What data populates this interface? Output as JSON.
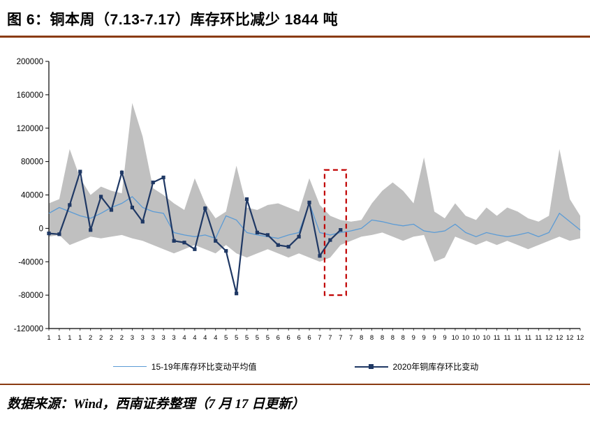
{
  "figure": {
    "source": "数据来源：Wind，西南证券整理（7 月 17 日更新）"
  },
  "colors": {
    "band": "#c0c0c0",
    "avg_line": "#5b9bd5",
    "line_2020": "#1f3864",
    "highlight": "#c00000",
    "rule": "#8a3b12",
    "axis": "#000000"
  },
  "chart_data": {
    "type": "line",
    "title": "图 6：铜本周（7.13-7.17）库存环比减少 1844 吨",
    "xlabel": "",
    "ylabel": "",
    "unit": "吨",
    "ylim": [
      -120000,
      200000
    ],
    "yticks": [
      200000,
      160000,
      120000,
      80000,
      40000,
      0,
      -40000,
      -80000,
      -120000
    ],
    "grid": false,
    "legend_position": "bottom",
    "x_labels": [
      "1",
      "1",
      "1",
      "1",
      "2",
      "2",
      "2",
      "2",
      "3",
      "3",
      "3",
      "3",
      "3",
      "4",
      "4",
      "4",
      "4",
      "5",
      "5",
      "5",
      "5",
      "5",
      "6",
      "6",
      "6",
      "6",
      "7",
      "7",
      "7",
      "7",
      "8",
      "8",
      "8",
      "8",
      "8",
      "9",
      "9",
      "9",
      "9",
      "10",
      "10",
      "10",
      "10",
      "11",
      "11",
      "11",
      "11",
      "11",
      "12",
      "12",
      "12",
      "12"
    ],
    "band": {
      "name": "15-19年库存环比变动区间",
      "upper": [
        30000,
        35000,
        95000,
        60000,
        40000,
        50000,
        45000,
        42000,
        150000,
        110000,
        48000,
        40000,
        30000,
        22000,
        60000,
        30000,
        12000,
        20000,
        75000,
        25000,
        22000,
        28000,
        30000,
        25000,
        20000,
        60000,
        28000,
        15000,
        10000,
        8000,
        10000,
        30000,
        45000,
        55000,
        45000,
        30000,
        85000,
        20000,
        12000,
        30000,
        15000,
        10000,
        25000,
        15000,
        25000,
        20000,
        12000,
        8000,
        15000,
        95000,
        35000,
        15000
      ],
      "lower": [
        -10000,
        -8000,
        -20000,
        -15000,
        -10000,
        -12000,
        -10000,
        -8000,
        -12000,
        -15000,
        -20000,
        -25000,
        -30000,
        -25000,
        -20000,
        -25000,
        -30000,
        -20000,
        -30000,
        -35000,
        -30000,
        -25000,
        -30000,
        -35000,
        -30000,
        -35000,
        -40000,
        -35000,
        -20000,
        -15000,
        -10000,
        -8000,
        -5000,
        -10000,
        -15000,
        -10000,
        -8000,
        -40000,
        -35000,
        -10000,
        -15000,
        -20000,
        -15000,
        -20000,
        -15000,
        -20000,
        -25000,
        -20000,
        -15000,
        -10000,
        -15000,
        -12000
      ]
    },
    "series": [
      {
        "name": "15-19年库存环比变动平均值",
        "values": [
          18000,
          25000,
          20000,
          15000,
          12000,
          18000,
          25000,
          30000,
          38000,
          25000,
          20000,
          18000,
          -5000,
          -8000,
          -10000,
          -8000,
          -12000,
          15000,
          10000,
          -5000,
          -8000,
          -10000,
          -12000,
          -8000,
          -5000,
          30000,
          -5000,
          -8000,
          -5000,
          -3000,
          0,
          10000,
          8000,
          5000,
          3000,
          5000,
          -3000,
          -5000,
          -3000,
          5000,
          -5000,
          -10000,
          -5000,
          -8000,
          -10000,
          -8000,
          -5000,
          -10000,
          -5000,
          18000,
          8000,
          -2000
        ]
      },
      {
        "name": "2020年铜库存环比变动",
        "values": [
          -6000,
          -7000,
          28000,
          68000,
          -2000,
          38000,
          22000,
          67000,
          25000,
          8000,
          55000,
          61000,
          -15000,
          -17000,
          -25000,
          24000,
          -15000,
          -27000,
          -78000,
          35000,
          -5000,
          -8000,
          -20000,
          -22000,
          -10000,
          31000,
          -33000,
          -14000,
          -1844
        ]
      }
    ],
    "highlight": {
      "meaning": "本周（7.13-7.17）",
      "x_index_start": 27,
      "x_index_end": 28,
      "y_top": 70000,
      "y_bottom": -80000
    }
  }
}
